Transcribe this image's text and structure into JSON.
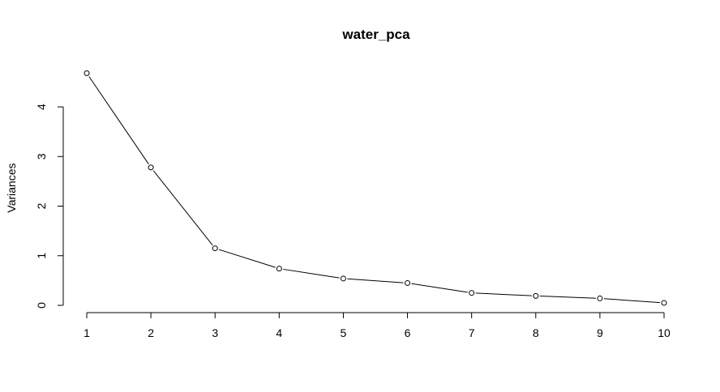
{
  "chart_data": {
    "type": "line",
    "title": "water_pca",
    "xlabel": "",
    "ylabel": "Variances",
    "x": [
      1,
      2,
      3,
      4,
      5,
      6,
      7,
      8,
      9,
      10
    ],
    "values": [
      4.68,
      2.78,
      1.15,
      0.74,
      0.54,
      0.45,
      0.25,
      0.19,
      0.14,
      0.05
    ],
    "x_ticks": [
      "1",
      "2",
      "3",
      "4",
      "5",
      "6",
      "7",
      "8",
      "9",
      "10"
    ],
    "y_ticks": [
      "0",
      "1",
      "2",
      "3",
      "4"
    ],
    "xlim": [
      1,
      10
    ],
    "ylim": [
      0,
      4
    ],
    "grid": false,
    "markers": "open-circle"
  }
}
